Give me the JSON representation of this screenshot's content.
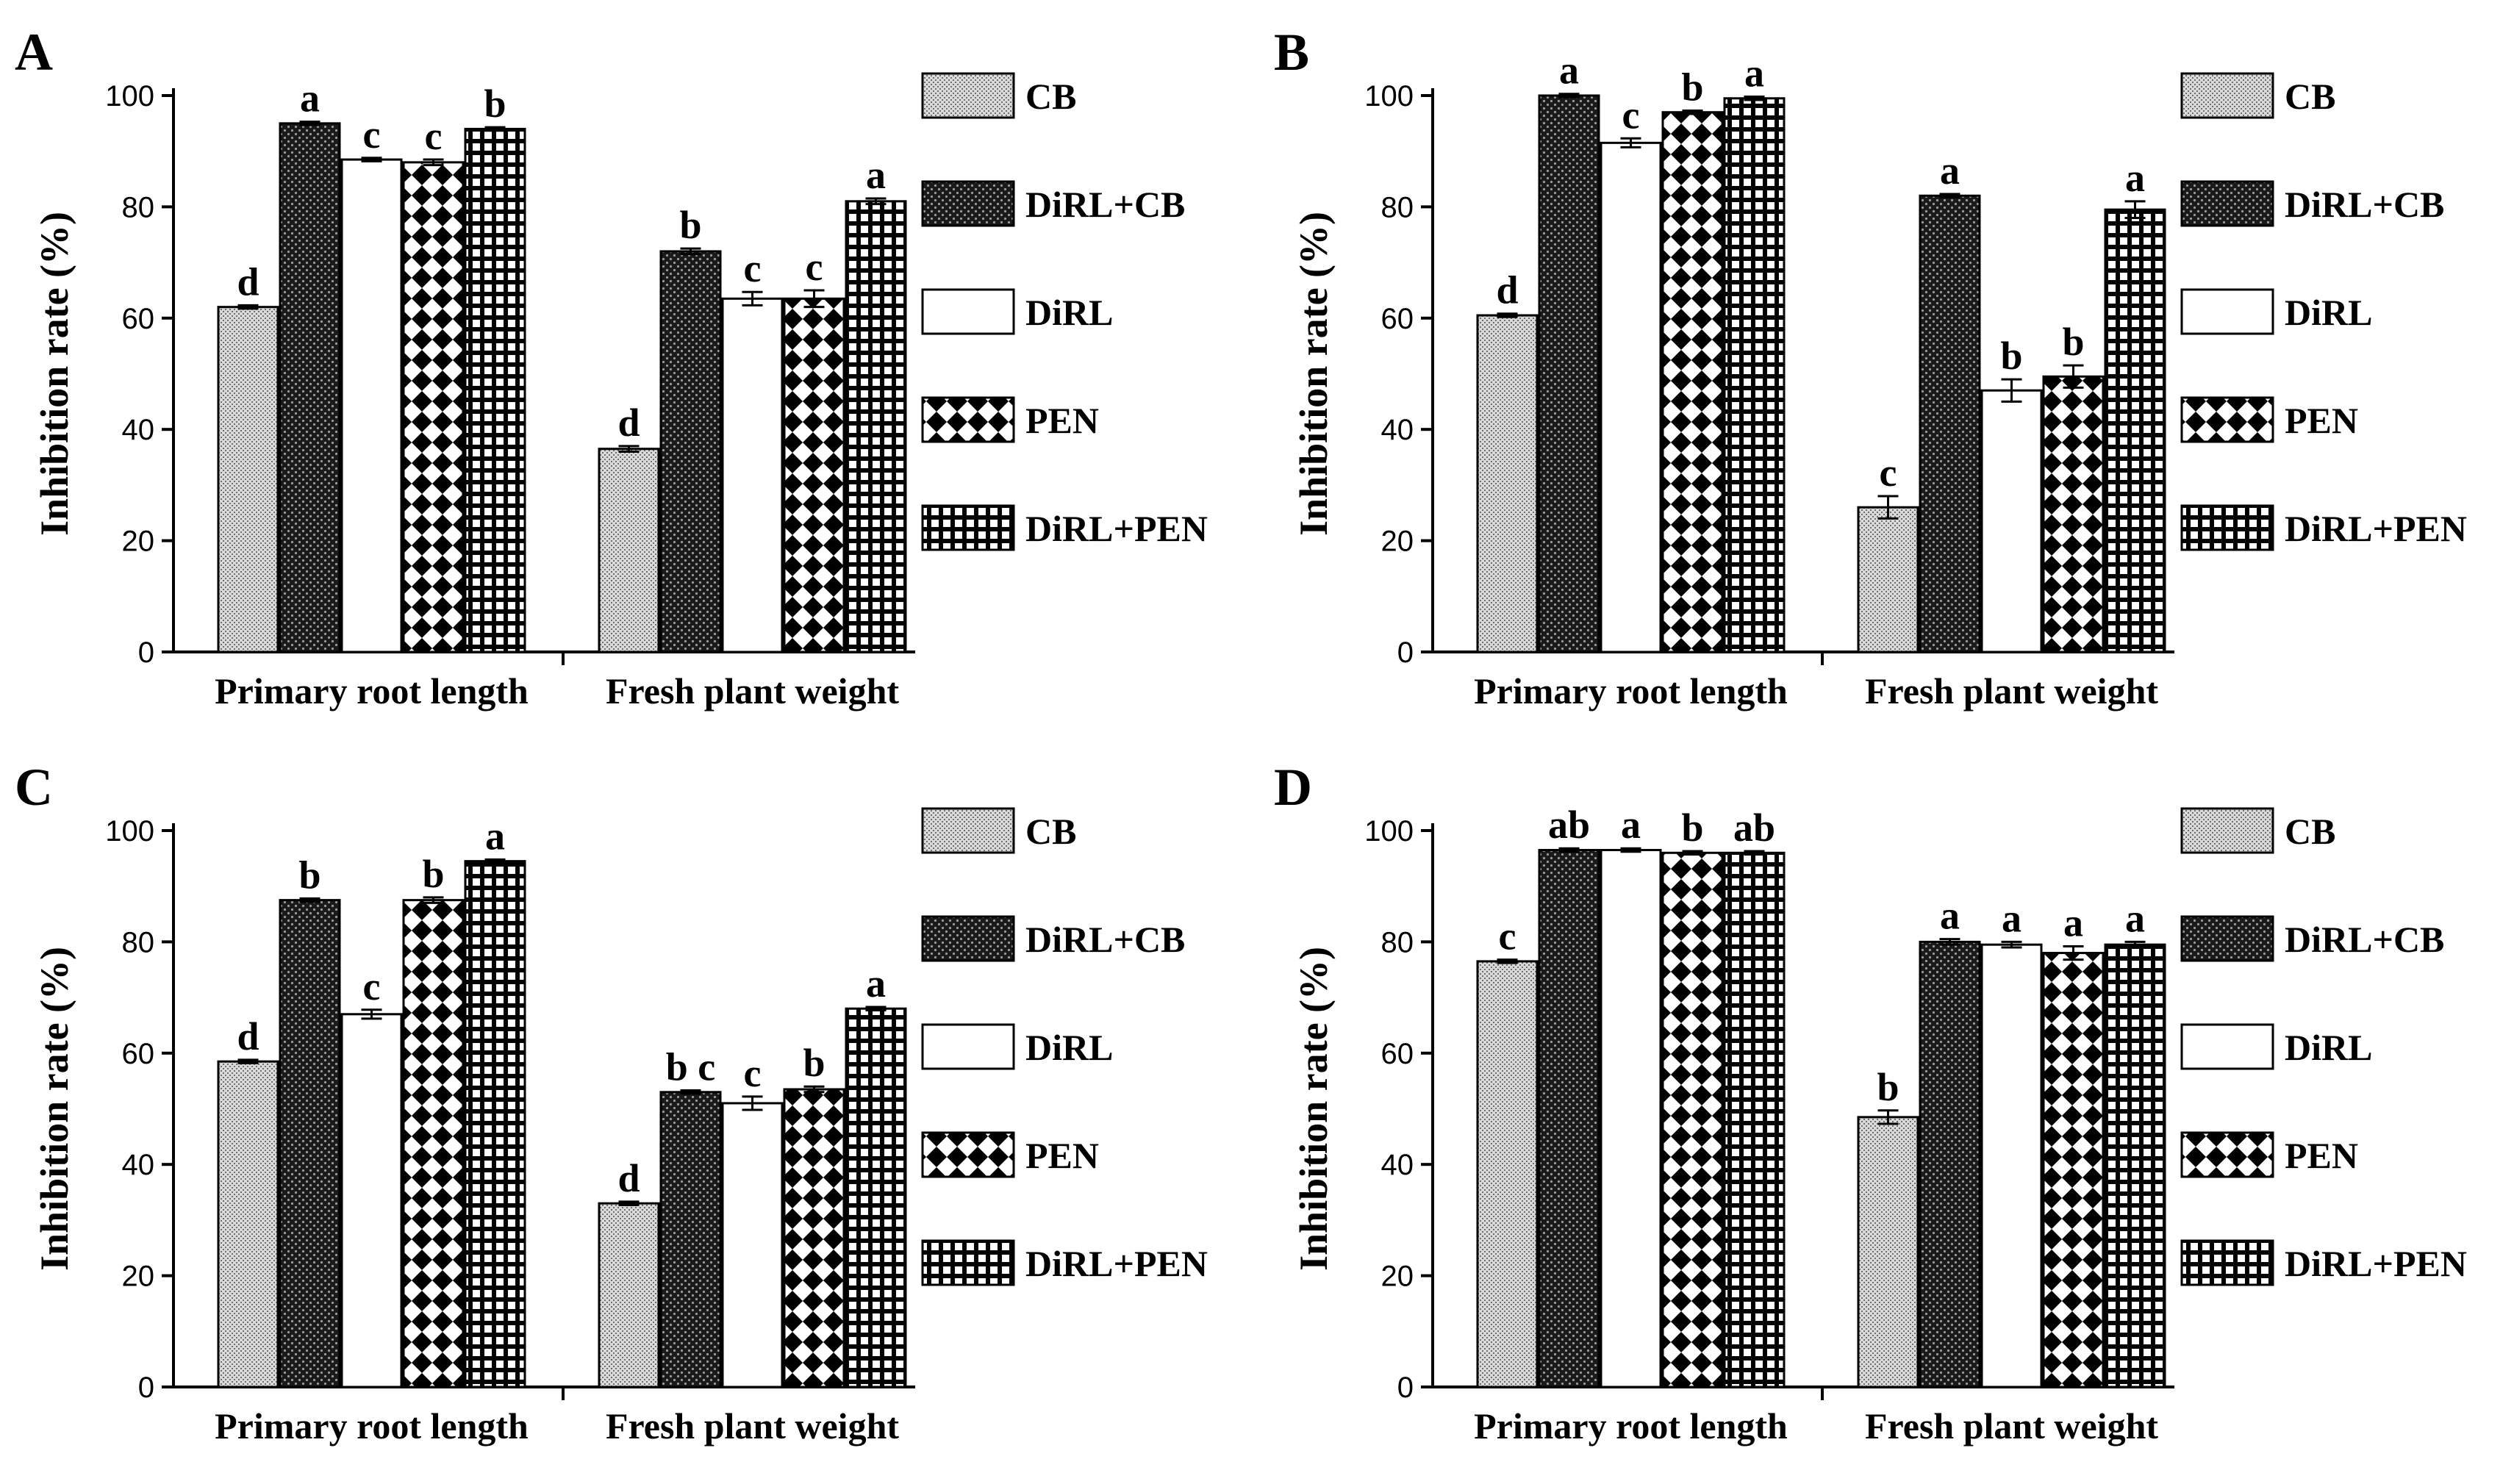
{
  "figure": {
    "legend_items": [
      {
        "name": "CB",
        "pattern": "pat-cb"
      },
      {
        "name": "DiRL+CB",
        "pattern": "pat-dirlcb"
      },
      {
        "name": "DiRL",
        "pattern": "pat-dirl"
      },
      {
        "name": "PEN",
        "pattern": "pat-pen"
      },
      {
        "name": "DiRL+PEN",
        "pattern": "pat-dirlpen"
      }
    ],
    "colors": {
      "ink": "#000000",
      "background": "#ffffff",
      "cb_fill": "#cfcfcf",
      "dark_fill": "#1a1a1a"
    }
  },
  "chart_data": [
    {
      "panel": "A",
      "type": "bar",
      "ylabel": "Inhibition rate (%)",
      "ylim": [
        0,
        100
      ],
      "yticks": [
        0,
        20,
        40,
        60,
        80,
        100
      ],
      "categories": [
        "Primary root length",
        "Fresh plant weight"
      ],
      "series": [
        {
          "name": "CB",
          "values": [
            62,
            36.5
          ],
          "errors": [
            0.3,
            0.5
          ],
          "labels": [
            "d",
            "d"
          ]
        },
        {
          "name": "DiRL+CB",
          "values": [
            95,
            72
          ],
          "errors": [
            0.3,
            0.5
          ],
          "labels": [
            "a",
            "b"
          ]
        },
        {
          "name": "DiRL",
          "values": [
            88.5,
            63.5
          ],
          "errors": [
            0.3,
            1.2
          ],
          "labels": [
            "c",
            "c"
          ]
        },
        {
          "name": "PEN",
          "values": [
            88,
            63.5
          ],
          "errors": [
            0.5,
            1.5
          ],
          "labels": [
            "c",
            "c"
          ]
        },
        {
          "name": "DiRL+PEN",
          "values": [
            94,
            81
          ],
          "errors": [
            0.3,
            0.5
          ],
          "labels": [
            "b",
            "a"
          ]
        }
      ]
    },
    {
      "panel": "B",
      "type": "bar",
      "ylabel": "Inhibition rate (%)",
      "ylim": [
        0,
        100
      ],
      "yticks": [
        0,
        20,
        40,
        60,
        80,
        100
      ],
      "categories": [
        "Primary root length",
        "Fresh plant weight"
      ],
      "series": [
        {
          "name": "CB",
          "values": [
            60.5,
            26
          ],
          "errors": [
            0.3,
            2
          ],
          "labels": [
            "d",
            "c"
          ]
        },
        {
          "name": "DiRL+CB",
          "values": [
            100,
            82
          ],
          "errors": [
            0.3,
            0.3
          ],
          "labels": [
            "a",
            "a"
          ]
        },
        {
          "name": "DiRL",
          "values": [
            91.5,
            47
          ],
          "errors": [
            0.8,
            2
          ],
          "labels": [
            "c",
            "b"
          ]
        },
        {
          "name": "PEN",
          "values": [
            97,
            49.5
          ],
          "errors": [
            0.3,
            2
          ],
          "labels": [
            "b",
            "b"
          ]
        },
        {
          "name": "DiRL+PEN",
          "values": [
            99.5,
            79.5
          ],
          "errors": [
            0.3,
            1.5
          ],
          "labels": [
            "a",
            "a"
          ]
        }
      ]
    },
    {
      "panel": "C",
      "type": "bar",
      "ylabel": "Inhibition rate (%)",
      "ylim": [
        0,
        100
      ],
      "yticks": [
        0,
        20,
        40,
        60,
        80,
        100
      ],
      "categories": [
        "Primary root length",
        "Fresh plant weight"
      ],
      "series": [
        {
          "name": "CB",
          "values": [
            58.5,
            33
          ],
          "errors": [
            0.3,
            0.3
          ],
          "labels": [
            "d",
            "d"
          ]
        },
        {
          "name": "DiRL+CB",
          "values": [
            87.5,
            53
          ],
          "errors": [
            0.3,
            0.3
          ],
          "labels": [
            "b",
            "b c"
          ]
        },
        {
          "name": "DiRL",
          "values": [
            67,
            51
          ],
          "errors": [
            0.8,
            1.2
          ],
          "labels": [
            "c",
            "c"
          ]
        },
        {
          "name": "PEN",
          "values": [
            87.5,
            53.5
          ],
          "errors": [
            0.5,
            0.5
          ],
          "labels": [
            "b",
            "b"
          ]
        },
        {
          "name": "DiRL+PEN",
          "values": [
            94.5,
            68
          ],
          "errors": [
            0.3,
            0.3
          ],
          "labels": [
            "a",
            "a"
          ]
        }
      ]
    },
    {
      "panel": "D",
      "type": "bar",
      "ylabel": "Inhibition rate (%)",
      "ylim": [
        0,
        100
      ],
      "yticks": [
        0,
        20,
        40,
        60,
        80,
        100
      ],
      "categories": [
        "Primary root length",
        "Fresh plant weight"
      ],
      "series": [
        {
          "name": "CB",
          "values": [
            76.5,
            48.5
          ],
          "errors": [
            0.3,
            1.2
          ],
          "labels": [
            "c",
            "b"
          ]
        },
        {
          "name": "DiRL+CB",
          "values": [
            96.5,
            80
          ],
          "errors": [
            0.3,
            0.5
          ],
          "labels": [
            "ab",
            "a"
          ]
        },
        {
          "name": "DiRL",
          "values": [
            96.5,
            79.5
          ],
          "errors": [
            0.3,
            0.5
          ],
          "labels": [
            "a",
            "a"
          ]
        },
        {
          "name": "PEN",
          "values": [
            96,
            78
          ],
          "errors": [
            0.3,
            1.2
          ],
          "labels": [
            "b",
            "a"
          ]
        },
        {
          "name": "DiRL+PEN",
          "values": [
            96,
            79.5
          ],
          "errors": [
            0.3,
            0.5
          ],
          "labels": [
            "ab",
            "a"
          ]
        }
      ]
    }
  ]
}
